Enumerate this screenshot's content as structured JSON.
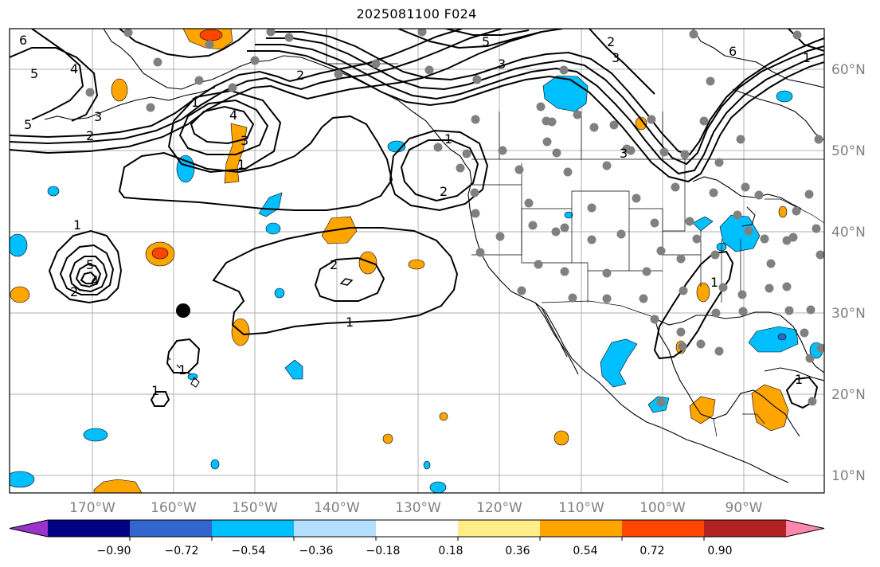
{
  "title": "2025081100 F024",
  "lon_labels": [
    "170°W",
    "160°W",
    "150°W",
    "140°W",
    "130°W",
    "120°W",
    "110°W",
    "100°W",
    "90°W"
  ],
  "lat_labels": [
    "60°N",
    "50°N",
    "40°N",
    "30°N",
    "20°N",
    "10°N"
  ],
  "contour_labels": [
    "6",
    "5",
    "5",
    "4",
    "3",
    "2",
    "1",
    "4",
    "3",
    "2",
    "1",
    "5",
    "3",
    "2",
    "1",
    "6",
    "3",
    "2",
    "1",
    "5",
    "4",
    "2",
    "1",
    "1",
    "1",
    "1",
    "2",
    "3",
    "1",
    "1"
  ],
  "colorbar": {
    "tick_labels": [
      "−0.90",
      "−0.72",
      "−0.54",
      "−0.36",
      "−0.18",
      "0.18",
      "0.36",
      "0.54",
      "0.72",
      "0.90"
    ],
    "colors": [
      "#9933cc",
      "#000080",
      "#3366cc",
      "#00bfff",
      "#b3e0ff",
      "#ffffff",
      "#ffee88",
      "#ffa500",
      "#ff4500",
      "#b22222",
      "#ff88aa"
    ]
  },
  "colors": {
    "land_outline": "#000000",
    "grid": "#b0b0b0",
    "station_dot": "#808080",
    "marker_dot": "#000000",
    "positive_fill": "#ffa500",
    "positive_strong": "#ff4500",
    "negative_fill": "#00bfff",
    "negative_light": "#b3e0ff"
  }
}
